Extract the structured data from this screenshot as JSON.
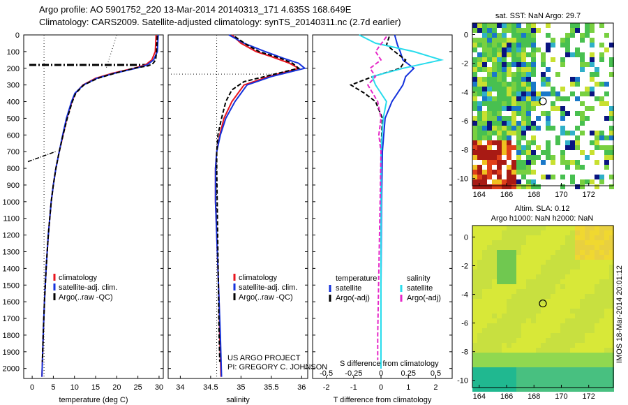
{
  "header": {
    "line1": "Argo profile: AO 5901752_220 13-Mar-2014 20140313_171 4.635S 168.649E",
    "line2": "Climatology: CARS2009. Satellite-adjusted climatology: synTS_20140311.nc (2.7d earlier)"
  },
  "footer_vertical": "IMOS 18-Mar-2014 20:01:12",
  "colors": {
    "climatology": "#e8141e",
    "satellite": "#1432dc",
    "argo": "#000000",
    "sal_satellite": "#28dcec",
    "sal_argo": "#e628c8"
  },
  "chart_data": [
    {
      "type": "line",
      "name": "temperature-profile",
      "xlabel": "temperature (deg C)",
      "ylabel": "",
      "xlim": [
        -2,
        31
      ],
      "ylim": [
        2060,
        0
      ],
      "xticks": [
        0,
        5,
        10,
        15,
        20,
        25,
        30
      ],
      "yticks": [
        0,
        100,
        200,
        300,
        400,
        500,
        600,
        700,
        800,
        900,
        1000,
        1100,
        1200,
        1300,
        1400,
        1500,
        1600,
        1700,
        1800,
        1900,
        2000
      ],
      "legend": [
        "climatology",
        "satellite-adj. clim.",
        "Argo(..raw -QC)"
      ],
      "series": [
        {
          "name": "climatology",
          "color": "#e8141e",
          "depth": [
            0,
            50,
            100,
            150,
            180,
            200,
            230,
            260,
            300,
            350,
            400,
            500,
            600,
            700,
            800,
            900,
            1000,
            1200,
            1400,
            1600,
            1800,
            2050
          ],
          "values": [
            29.3,
            29.2,
            29.1,
            28.3,
            26.8,
            24,
            19,
            15,
            12,
            10.2,
            9.4,
            8.2,
            7.3,
            6.4,
            5.6,
            5,
            4.5,
            3.8,
            3.3,
            2.9,
            2.6,
            2.3
          ]
        },
        {
          "name": "satellite-adj. clim.",
          "color": "#1432dc",
          "depth": [
            0,
            50,
            100,
            150,
            180,
            200,
            230,
            260,
            300,
            350,
            400,
            500,
            600,
            700,
            800,
            900,
            1000,
            1200,
            1400,
            1600,
            1800,
            2050
          ],
          "values": [
            29.8,
            29.7,
            29.6,
            28.7,
            27.2,
            24.5,
            19.5,
            15.3,
            12.1,
            10.1,
            9.3,
            8.1,
            7.2,
            6.4,
            5.6,
            5,
            4.5,
            3.8,
            3.3,
            2.9,
            2.6,
            2.3
          ]
        },
        {
          "name": "Argo(..raw -QC)",
          "color": "#000000",
          "depth": [
            5,
            50,
            100,
            150,
            170,
            185,
            200,
            230,
            260,
            300,
            350,
            400,
            500,
            600,
            700,
            800,
            900,
            1000,
            1200,
            1400,
            1600,
            1800,
            1960
          ],
          "values": [
            29.6,
            29.5,
            29.4,
            29.2,
            28.6,
            27.5,
            24,
            19.6,
            15.5,
            12.2,
            10.3,
            9.5,
            8.3,
            7.3,
            6.4,
            5.6,
            5,
            4.5,
            3.8,
            3.3,
            2.9,
            2.6,
            2.4
          ]
        }
      ]
    },
    {
      "type": "line",
      "name": "salinity-profile",
      "xlabel": "salinity",
      "ylabel": "",
      "xlim": [
        33.8,
        36.1
      ],
      "ylim": [
        2060,
        0
      ],
      "xticks": [
        34,
        34.5,
        35,
        35.5,
        36
      ],
      "legend": [
        "climatology",
        "satellite-adj. clim.",
        "Argo(..raw -QC)"
      ],
      "series": [
        {
          "name": "climatology",
          "color": "#e8141e",
          "depth": [
            0,
            50,
            100,
            130,
            170,
            200,
            250,
            300,
            400,
            500,
            600,
            700,
            800,
            1000,
            1200,
            1400,
            1600,
            1800,
            2050
          ],
          "values": [
            34.85,
            35.0,
            35.25,
            35.5,
            35.8,
            35.95,
            35.45,
            35.05,
            34.85,
            34.72,
            34.65,
            34.6,
            34.58,
            34.58,
            34.6,
            34.62,
            34.64,
            34.65,
            34.67
          ]
        },
        {
          "name": "satellite-adj. clim.",
          "color": "#1432dc",
          "depth": [
            0,
            50,
            100,
            140,
            170,
            200,
            250,
            300,
            400,
            500,
            600,
            700,
            800,
            1000,
            1200,
            1400,
            1600,
            1800,
            2050
          ],
          "values": [
            34.8,
            35.05,
            35.4,
            35.7,
            35.95,
            36.05,
            35.5,
            35.1,
            34.9,
            34.75,
            34.66,
            34.6,
            34.58,
            34.58,
            34.6,
            34.62,
            34.64,
            34.66,
            34.68
          ]
        },
        {
          "name": "Argo(..raw -QC)",
          "color": "#000000",
          "depth": [
            10,
            60,
            100,
            140,
            170,
            200,
            240,
            280,
            330,
            400,
            500,
            600,
            700,
            800,
            1800,
            1960
          ],
          "values": [
            34.9,
            35.1,
            35.3,
            35.65,
            35.85,
            35.95,
            35.5,
            35.05,
            34.85,
            34.75,
            34.68,
            34.62,
            34.6,
            34.6,
            34.64,
            34.65
          ]
        }
      ]
    },
    {
      "type": "line",
      "name": "difference-profile",
      "xlabel": "T difference from climatology",
      "xlabel2": "S difference from climatology",
      "ylim": [
        2060,
        0
      ],
      "xlim": [
        -2.5,
        2.6
      ],
      "xticks": [
        -2,
        -1,
        0,
        1,
        2
      ],
      "xticks2": [
        "-0.5",
        "-0.25",
        "0",
        "0.25",
        "0.5"
      ],
      "legend_temp_title": "temperature",
      "legend_sal_title": "salinity",
      "legend_temp": [
        "satellite",
        "Argo(-adj)"
      ],
      "legend_sal": [
        "satellite",
        "Argo(-adj)"
      ],
      "series": [
        {
          "name": "T satellite",
          "color": "#1432dc",
          "depth": [
            0,
            60,
            100,
            150,
            200,
            250,
            300,
            350,
            400,
            500,
            700,
            1000,
            1500,
            2000
          ],
          "values": [
            0.5,
            0.6,
            0.7,
            0.8,
            1.2,
            0.9,
            0.8,
            0.6,
            0.4,
            0.15,
            0.05,
            0.02,
            0.0,
            0.0
          ]
        },
        {
          "name": "T Argo(-adj)",
          "color": "#000000",
          "depth": [
            10,
            60,
            100,
            150,
            200,
            250,
            300,
            350,
            400,
            500,
            700,
            1000
          ],
          "values": [
            0.3,
            0.2,
            0.5,
            0.9,
            0.7,
            -0.3,
            -1.1,
            -0.6,
            -0.2,
            0.05,
            0.0,
            0.0
          ]
        },
        {
          "name": "S satellite",
          "color": "#28dcec",
          "depth": [
            0,
            50,
            100,
            150,
            200,
            250,
            300,
            400,
            500,
            600,
            700,
            900,
            1200,
            1600,
            2000
          ],
          "values": [
            -0.2,
            -0.05,
            0.3,
            0.55,
            0.2,
            -0.08,
            -0.05,
            0.05,
            0.02,
            0.01,
            0.0,
            0.0,
            0.0,
            0.0,
            0.0
          ]
        },
        {
          "name": "S Argo(-adj)",
          "color": "#e628c8",
          "depth": [
            10,
            100,
            150,
            200,
            250,
            300,
            400,
            500,
            600,
            700,
            1800,
            1950
          ],
          "values": [
            0.05,
            -0.05,
            0.0,
            -0.1,
            -0.05,
            -0.12,
            -0.03,
            0.0,
            -0.02,
            0.0,
            -0.03,
            -0.03
          ]
        }
      ]
    },
    {
      "type": "heatmap",
      "name": "sst-map",
      "title": "sat. SST: NaN Argo: 29.7",
      "xlim": [
        163.5,
        173.8
      ],
      "ylim": [
        -10.5,
        0.8
      ],
      "xticks": [
        164,
        166,
        168,
        170,
        172
      ],
      "yticks": [
        0,
        -2,
        -4,
        -6,
        -8,
        -10
      ],
      "marker": {
        "lon": 168.649,
        "lat": -4.635
      }
    },
    {
      "type": "heatmap",
      "name": "sla-map",
      "title": "Altim. SLA: 0.12",
      "subtitle": "Argo h1000: NaN h2000: NaN",
      "xlim": [
        163.5,
        173.8
      ],
      "ylim": [
        -10.5,
        0.8
      ],
      "xticks": [
        164,
        166,
        168,
        170,
        172
      ],
      "yticks": [
        0,
        -2,
        -4,
        -6,
        -8,
        -10
      ],
      "marker": {
        "lon": 168.649,
        "lat": -4.635
      }
    }
  ],
  "annotation": {
    "line1": "US ARGO PROJECT",
    "line2": "PI: GREGORY C. JOHNSON"
  }
}
